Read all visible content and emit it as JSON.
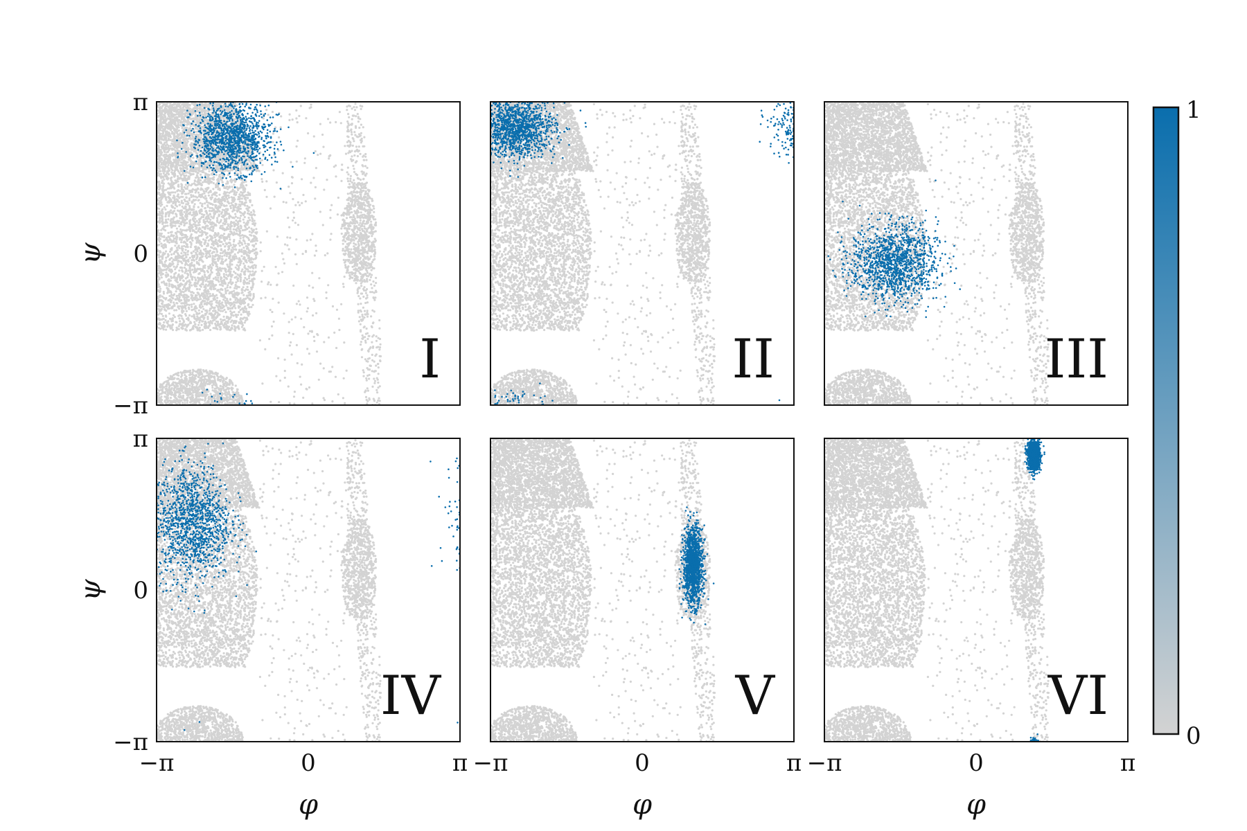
{
  "chart_data": {
    "type": "scatter",
    "layout": "2x3 small multiples with shared axes and one colorbar",
    "background_color": "#d3d3d3",
    "highlight_color": "#0a6ead",
    "x_axis": {
      "label": "φ",
      "range": [
        "-π",
        "π"
      ],
      "ticks": [
        "−π",
        "0",
        "π"
      ]
    },
    "y_axis": {
      "label": "ψ",
      "range": [
        "-π",
        "π"
      ],
      "ticks": [
        "−π",
        "0",
        "π"
      ]
    },
    "colorbar": {
      "min_label": "0",
      "max_label": "1",
      "low_color": "#d3d3d3",
      "high_color": "#0a6ead"
    },
    "background_regions": [
      {
        "region": "beta",
        "phi_range": [
          -3.14,
          -1.2
        ],
        "psi_range": [
          2.1,
          3.14
        ]
      },
      {
        "region": "alpha_R",
        "phi_range": [
          -3.0,
          -0.9
        ],
        "psi_range": [
          -1.5,
          1.5
        ]
      },
      {
        "region": "beta_wrap",
        "phi_range": [
          -3.1,
          -1.5
        ],
        "psi_range": [
          -3.14,
          -2.6
        ]
      },
      {
        "region": "alpha_L",
        "phi_range": [
          0.9,
          1.4
        ],
        "psi_range": [
          -0.4,
          1.5
        ]
      }
    ],
    "panels": [
      {
        "label": "I",
        "highlight": {
          "phi_center": -1.6,
          "psi_center": 2.4,
          "spread": [
            0.8,
            0.7
          ]
        }
      },
      {
        "label": "II",
        "highlight": {
          "phi_center": -2.6,
          "psi_center": 2.6,
          "spread": [
            0.8,
            0.6
          ]
        }
      },
      {
        "label": "III",
        "highlight": {
          "phi_center": -1.7,
          "psi_center": -0.2,
          "spread": [
            0.9,
            0.8
          ]
        }
      },
      {
        "label": "IV",
        "highlight": {
          "phi_center": -2.4,
          "psi_center": 1.4,
          "spread": [
            0.8,
            1.2
          ]
        }
      },
      {
        "label": "V",
        "highlight": {
          "phi_center": 1.05,
          "psi_center": 0.5,
          "spread": [
            0.2,
            0.8
          ]
        }
      },
      {
        "label": "VI",
        "highlight": {
          "phi_center": 1.2,
          "psi_center": 2.8,
          "spread": [
            0.12,
            0.3
          ]
        }
      }
    ]
  }
}
